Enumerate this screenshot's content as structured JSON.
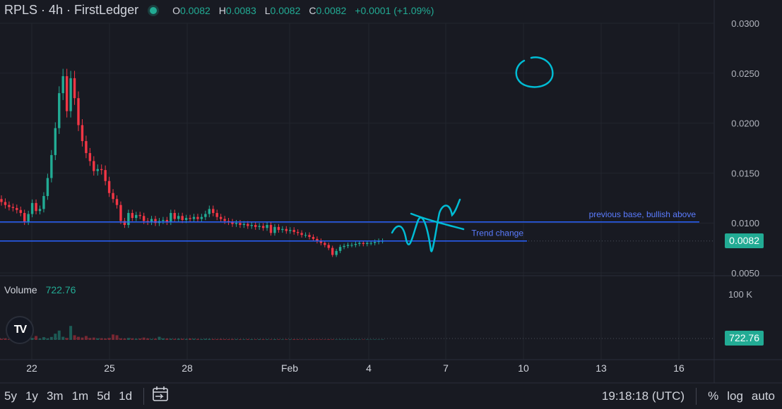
{
  "header": {
    "symbol": "RPLS · 4h · FirstLedger",
    "o_label": "O",
    "o_value": "0.0082",
    "h_label": "H",
    "h_value": "0.0083",
    "l_label": "L",
    "l_value": "0.0082",
    "c_label": "C",
    "c_value": "0.0082",
    "change": "+0.0001 (+1.09%)"
  },
  "volume_pane": {
    "label": "Volume",
    "value": "722.76",
    "axis_label": "100 K",
    "badge": "722.76"
  },
  "price_badge": "0.0082",
  "logo_text": "TV",
  "bottom_bar": {
    "ranges": [
      "5y",
      "1y",
      "3m",
      "1m",
      "5d",
      "1d"
    ],
    "time": "19:18:18 (UTC)",
    "percent": "%",
    "log": "log",
    "auto": "auto"
  },
  "colors": {
    "up": "#22ab94",
    "down": "#f23645",
    "line": "#2962ff",
    "drawing": "#00bcd4",
    "bg": "#181a22"
  },
  "chart_data": {
    "type": "candlestick",
    "x_ticks": [
      "22",
      "25",
      "28",
      "Feb",
      "4",
      "7",
      "10",
      "13",
      "16"
    ],
    "y_ticks": [
      "0.0050",
      "0.0100",
      "0.0150",
      "0.0200",
      "0.0250",
      "0.0300"
    ],
    "ylim": [
      0.005,
      0.0305
    ],
    "current_price": 0.0082,
    "closes": [
      0.0121,
      0.0118,
      0.0116,
      0.0115,
      0.0113,
      0.011,
      0.0101,
      0.0109,
      0.012,
      0.0112,
      0.0114,
      0.0127,
      0.0145,
      0.0168,
      0.0195,
      0.023,
      0.0247,
      0.0212,
      0.0245,
      0.0225,
      0.0198,
      0.0182,
      0.017,
      0.0162,
      0.0152,
      0.0154,
      0.0153,
      0.0142,
      0.013,
      0.0124,
      0.0118,
      0.0102,
      0.0098,
      0.011,
      0.0105,
      0.0108,
      0.0107,
      0.0102,
      0.0101,
      0.0104,
      0.01,
      0.0102,
      0.0103,
      0.0101,
      0.011,
      0.0104,
      0.0107,
      0.0103,
      0.0105,
      0.0104,
      0.0106,
      0.0104,
      0.0106,
      0.0109,
      0.0114,
      0.011,
      0.0106,
      0.0104,
      0.0102,
      0.0101,
      0.0099,
      0.01,
      0.0098,
      0.0099,
      0.0097,
      0.0098,
      0.0096,
      0.0097,
      0.0095,
      0.0098,
      0.009,
      0.0096,
      0.0093,
      0.0094,
      0.0092,
      0.0093,
      0.0091,
      0.009,
      0.0088,
      0.0088,
      0.0086,
      0.0084,
      0.0082,
      0.008,
      0.0078,
      0.0075,
      0.0068,
      0.0072,
      0.0076,
      0.0077,
      0.0078,
      0.0078,
      0.0079,
      0.008,
      0.0079,
      0.008,
      0.008,
      0.0081,
      0.0082,
      0.0082
    ],
    "volumes": [
      1.5,
      2.0,
      1.2,
      3.0,
      1.8,
      2.2,
      4.0,
      3.0,
      2.5,
      5.0,
      1.8,
      3.5,
      2.0,
      3.8,
      8.0,
      12.0,
      4.0,
      2.5,
      18.0,
      6.0,
      4.0,
      3.0,
      5.0,
      2.5,
      3.0,
      2.0,
      2.2,
      1.8,
      2.5,
      7.0,
      6.0,
      2.0,
      1.8,
      2.5,
      2.0,
      1.5,
      1.8,
      3.0,
      2.0,
      1.2,
      1.5,
      4.0,
      2.0,
      1.8,
      1.5,
      1.3,
      1.6,
      1.4,
      1.2,
      1.8,
      1.5,
      1.2,
      1.0,
      1.4,
      1.3,
      1.1,
      1.0,
      1.2,
      1.0,
      0.9,
      1.1,
      1.0,
      0.9,
      0.8,
      1.0,
      0.9,
      0.8,
      1.0,
      0.9,
      0.8,
      0.7,
      0.9,
      0.8,
      0.7,
      0.8,
      0.7,
      0.9,
      0.8,
      0.7,
      0.6,
      0.8,
      0.7,
      0.6,
      0.7,
      0.6,
      0.8,
      0.7,
      0.6,
      0.7,
      0.6,
      0.5,
      0.6,
      0.7,
      0.6,
      0.5,
      0.6,
      0.5,
      0.6,
      0.5,
      0.6
    ],
    "hlines": [
      {
        "price": 0.0101,
        "label": "previous base, bullish above"
      },
      {
        "price": 0.0082,
        "label": "Trend change"
      }
    ]
  }
}
